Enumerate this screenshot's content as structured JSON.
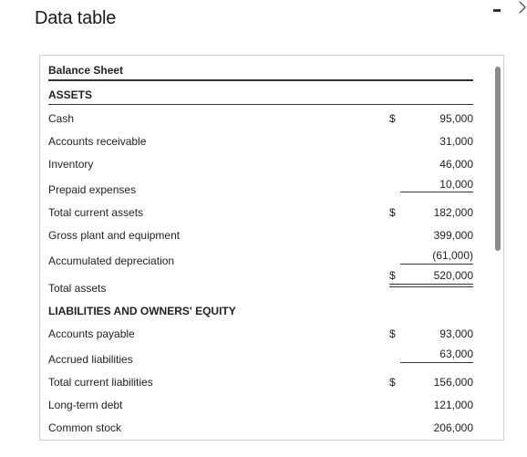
{
  "window": {
    "title": "Data table"
  },
  "table": {
    "header": "Balance Sheet",
    "sections": {
      "assets": "ASSETS",
      "liabilities": "LIABILITIES AND OWNERS' EQUITY"
    },
    "currency_symbol": "$",
    "rows": [
      {
        "label": "Cash",
        "dollar": "$",
        "amount": "95,000"
      },
      {
        "label": "Accounts receivable",
        "dollar": "",
        "amount": "31,000"
      },
      {
        "label": "Inventory",
        "dollar": "",
        "amount": "46,000"
      },
      {
        "label": "Prepaid expenses",
        "dollar": "",
        "amount": "10,000"
      },
      {
        "label": "Total current assets",
        "dollar": "$",
        "amount": "182,000"
      },
      {
        "label": "Gross plant and equipment",
        "dollar": "",
        "amount": "399,000"
      },
      {
        "label": "Accumulated depreciation",
        "dollar": "",
        "amount": "(61,000)"
      },
      {
        "label": "Total assets",
        "dollar": "$",
        "amount": "520,000"
      },
      {
        "label": "Accounts payable",
        "dollar": "$",
        "amount": "93,000"
      },
      {
        "label": "Accrued liabilities",
        "dollar": "",
        "amount": "63,000"
      },
      {
        "label": "Total current liabilities",
        "dollar": "$",
        "amount": "156,000"
      },
      {
        "label": "Long-term debt",
        "dollar": "",
        "amount": "121,000"
      },
      {
        "label": "Common stock",
        "dollar": "",
        "amount": "206,000"
      }
    ]
  },
  "icons": {
    "minimize": "minimize-icon",
    "next": "chevron-right-icon"
  },
  "colors": {
    "text": "#222222",
    "rule": "#333333",
    "scrollbar_thumb": "#8a8a8a",
    "panel_border": "#cfcfcf"
  }
}
